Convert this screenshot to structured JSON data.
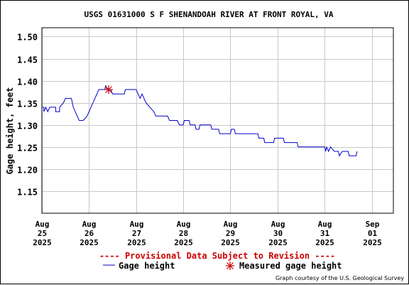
{
  "chart_data": {
    "type": "line",
    "title": "USGS 01631000 S F SHENANDOAH RIVER AT FRONT ROYAL, VA",
    "ylabel": "Gage height, feet",
    "xlabel": "",
    "ylim": [
      1.1,
      1.52
    ],
    "xlim": [
      "2025-08-25T00:00",
      "2025-09-01T11:00"
    ],
    "y_ticks": [
      "1.15",
      "1.20",
      "1.25",
      "1.30",
      "1.35",
      "1.40",
      "1.45",
      "1.50"
    ],
    "x_ticks": [
      {
        "month": "Aug",
        "day": "25",
        "year": "2025",
        "date": "2025-08-25T00:00"
      },
      {
        "month": "Aug",
        "day": "26",
        "year": "2025",
        "date": "2025-08-26T00:00"
      },
      {
        "month": "Aug",
        "day": "27",
        "year": "2025",
        "date": "2025-08-27T00:00"
      },
      {
        "month": "Aug",
        "day": "28",
        "year": "2025",
        "date": "2025-08-28T00:00"
      },
      {
        "month": "Aug",
        "day": "29",
        "year": "2025",
        "date": "2025-08-29T00:00"
      },
      {
        "month": "Aug",
        "day": "30",
        "year": "2025",
        "date": "2025-08-30T00:00"
      },
      {
        "month": "Aug",
        "day": "31",
        "year": "2025",
        "date": "2025-08-31T00:00"
      },
      {
        "month": "Sep",
        "day": "01",
        "year": "2025",
        "date": "2025-09-01T00:00"
      }
    ],
    "grid": true,
    "series": [
      {
        "name": "Gage height",
        "color": "#0000cc",
        "points": [
          [
            "2025-08-25T00:00",
            1.34
          ],
          [
            "2025-08-25T01:00",
            1.34
          ],
          [
            "2025-08-25T01:00",
            1.33
          ],
          [
            "2025-08-25T02:00",
            1.34
          ],
          [
            "2025-08-25T03:00",
            1.33
          ],
          [
            "2025-08-25T04:00",
            1.34
          ],
          [
            "2025-08-25T07:00",
            1.34
          ],
          [
            "2025-08-25T07:00",
            1.33
          ],
          [
            "2025-08-25T09:00",
            1.33
          ],
          [
            "2025-08-25T09:00",
            1.34
          ],
          [
            "2025-08-25T11:00",
            1.35
          ],
          [
            "2025-08-25T12:00",
            1.36
          ],
          [
            "2025-08-25T15:00",
            1.36
          ],
          [
            "2025-08-25T16:00",
            1.34
          ],
          [
            "2025-08-25T19:00",
            1.31
          ],
          [
            "2025-08-25T21:00",
            1.31
          ],
          [
            "2025-08-25T23:00",
            1.32
          ],
          [
            "2025-08-26T01:00",
            1.34
          ],
          [
            "2025-08-26T03:00",
            1.36
          ],
          [
            "2025-08-26T05:00",
            1.38
          ],
          [
            "2025-08-26T08:00",
            1.38
          ],
          [
            "2025-08-26T08:30",
            1.39
          ],
          [
            "2025-08-26T09:00",
            1.38
          ],
          [
            "2025-08-26T11:00",
            1.38
          ],
          [
            "2025-08-26T12:00",
            1.37
          ],
          [
            "2025-08-26T18:00",
            1.37
          ],
          [
            "2025-08-26T18:30",
            1.38
          ],
          [
            "2025-08-27T00:00",
            1.38
          ],
          [
            "2025-08-27T01:00",
            1.37
          ],
          [
            "2025-08-27T02:00",
            1.36
          ],
          [
            "2025-08-27T03:00",
            1.37
          ],
          [
            "2025-08-27T04:00",
            1.36
          ],
          [
            "2025-08-27T05:00",
            1.35
          ],
          [
            "2025-08-27T07:00",
            1.34
          ],
          [
            "2025-08-27T09:00",
            1.33
          ],
          [
            "2025-08-27T10:00",
            1.32
          ],
          [
            "2025-08-27T16:00",
            1.32
          ],
          [
            "2025-08-27T17:00",
            1.31
          ],
          [
            "2025-08-27T21:00",
            1.31
          ],
          [
            "2025-08-27T22:00",
            1.3
          ],
          [
            "2025-08-28T00:00",
            1.3
          ],
          [
            "2025-08-28T00:30",
            1.31
          ],
          [
            "2025-08-28T03:00",
            1.31
          ],
          [
            "2025-08-28T03:30",
            1.3
          ],
          [
            "2025-08-28T06:00",
            1.3
          ],
          [
            "2025-08-28T06:30",
            1.29
          ],
          [
            "2025-08-28T08:00",
            1.29
          ],
          [
            "2025-08-28T08:30",
            1.3
          ],
          [
            "2025-08-28T14:00",
            1.3
          ],
          [
            "2025-08-28T14:30",
            1.29
          ],
          [
            "2025-08-28T18:00",
            1.29
          ],
          [
            "2025-08-28T18:30",
            1.28
          ],
          [
            "2025-08-29T00:00",
            1.28
          ],
          [
            "2025-08-29T00:30",
            1.29
          ],
          [
            "2025-08-29T02:00",
            1.29
          ],
          [
            "2025-08-29T02:30",
            1.28
          ],
          [
            "2025-08-29T14:00",
            1.28
          ],
          [
            "2025-08-29T14:30",
            1.27
          ],
          [
            "2025-08-29T17:00",
            1.27
          ],
          [
            "2025-08-29T17:30",
            1.26
          ],
          [
            "2025-08-29T22:00",
            1.26
          ],
          [
            "2025-08-29T22:30",
            1.27
          ],
          [
            "2025-08-30T03:00",
            1.27
          ],
          [
            "2025-08-30T03:30",
            1.26
          ],
          [
            "2025-08-30T10:00",
            1.26
          ],
          [
            "2025-08-30T10:30",
            1.25
          ],
          [
            "2025-08-30T22:00",
            1.25
          ],
          [
            "2025-08-31T00:00",
            1.25
          ],
          [
            "2025-08-31T00:30",
            1.24
          ],
          [
            "2025-08-31T01:00",
            1.25
          ],
          [
            "2025-08-31T02:00",
            1.24
          ],
          [
            "2025-08-31T03:00",
            1.25
          ],
          [
            "2025-08-31T05:00",
            1.24
          ],
          [
            "2025-08-31T07:00",
            1.24
          ],
          [
            "2025-08-31T07:30",
            1.23
          ],
          [
            "2025-08-31T09:00",
            1.24
          ],
          [
            "2025-08-31T12:00",
            1.24
          ],
          [
            "2025-08-31T12:30",
            1.23
          ],
          [
            "2025-08-31T16:00",
            1.23
          ],
          [
            "2025-08-31T16:30",
            1.24
          ]
        ]
      }
    ],
    "measured": {
      "name": "Measured gage height",
      "color": "#cc0000",
      "points": [
        [
          "2025-08-26T10:00",
          1.38
        ]
      ]
    },
    "note": "---- Provisional Data Subject to Revision ----",
    "credit": "Graph courtesy of the U.S. Geological Survey",
    "legend": [
      {
        "label": "Gage height",
        "symbol": "line",
        "color": "#0000cc"
      },
      {
        "label": "Measured gage height",
        "symbol": "asterisk",
        "color": "#cc0000"
      }
    ],
    "legend_position": "bottom"
  }
}
